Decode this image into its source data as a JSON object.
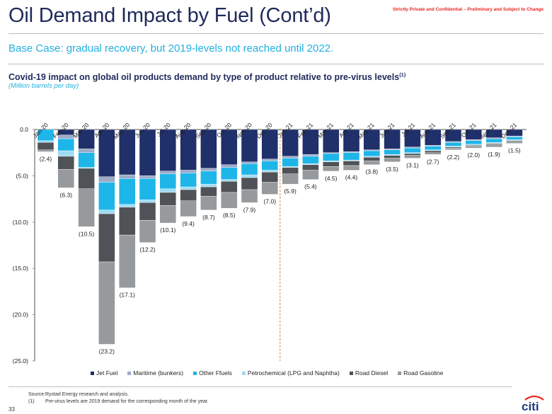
{
  "header": {
    "title": "Oil Demand Impact by Fuel (Cont’d)",
    "confidential": "Strictly Private and Confidential – Preliminary and Subject to Change",
    "subtitle": "Base Case: gradual recovery, but 2019-levels not reached until 2022."
  },
  "chart_title": {
    "text": "Covid-19 impact on global oil products demand by type of product relative to pre-virus levels",
    "sup": "(1)",
    "unit": "(Million barrels per day)"
  },
  "colors": {
    "jet_fuel": "#20306a",
    "maritime": "#9daac8",
    "other_fuels": "#1eb6e8",
    "petrochemical": "#9fdcf2",
    "road_diesel": "#4f5257",
    "road_gasoline": "#979a9d",
    "divider": "#e8955a",
    "title": "#1f2a5a",
    "accent": "#22b0e0",
    "confidential": "#e8231c"
  },
  "chart_data": {
    "type": "bar",
    "stacked": true,
    "title": "Covid-19 impact on global oil products demand by type of product relative to pre-virus levels",
    "xlabel": "",
    "ylabel": "Million barrels per day",
    "ylim": [
      -25,
      0
    ],
    "yticks": [
      0,
      -5,
      -10,
      -15,
      -20,
      -25
    ],
    "ytick_labels": [
      "0.0",
      "(5.0)",
      "(10.0)",
      "(15.0)",
      "(20.0)",
      "(25.0)"
    ],
    "legend_position": "bottom",
    "grid": false,
    "forecast_divider_after": "Dec-20",
    "categories": [
      "Jan-20",
      "Feb-20",
      "Mar-20",
      "Apr-20",
      "May-20",
      "Jun-20",
      "Jul-20",
      "Aug-20",
      "Sep-20",
      "Oct-20",
      "Nov-20",
      "Dec-20",
      "Jan-21",
      "Feb-21",
      "Mar-21",
      "Apr-21",
      "May-21",
      "Jun-21",
      "Jul-21",
      "Aug-21",
      "Sep-21",
      "Oct-21",
      "Nov-21",
      "Dec-21"
    ],
    "series": [
      {
        "name": "Jet Fuel",
        "key": "jet_fuel",
        "values": [
          0.0,
          -0.6,
          -2.1,
          -5.1,
          -4.9,
          -5.0,
          -4.5,
          -4.4,
          -4.2,
          -3.8,
          -3.5,
          -3.2,
          -2.9,
          -2.7,
          -2.5,
          -2.4,
          -2.2,
          -2.1,
          -1.9,
          -1.7,
          -1.3,
          -1.1,
          -0.9,
          -0.7
        ]
      },
      {
        "name": "Maritime (bunkers)",
        "key": "maritime",
        "values": [
          0.0,
          -0.4,
          -0.4,
          -0.6,
          -0.4,
          -0.3,
          -0.3,
          -0.3,
          -0.3,
          -0.3,
          -0.2,
          -0.2,
          -0.2,
          -0.2,
          -0.1,
          -0.1,
          -0.1,
          -0.1,
          -0.1,
          -0.1,
          -0.1,
          -0.1,
          -0.1,
          -0.1
        ]
      },
      {
        "name": "Other Ffuels",
        "key": "other_fuels",
        "values": [
          -1.2,
          -1.3,
          -1.6,
          -3.0,
          -2.8,
          -2.3,
          -1.6,
          -1.5,
          -1.4,
          -1.3,
          -1.2,
          -1.0,
          -0.9,
          -0.8,
          -0.8,
          -0.8,
          -0.6,
          -0.5,
          -0.5,
          -0.4,
          -0.4,
          -0.4,
          -0.4,
          -0.3
        ]
      },
      {
        "name": "Petrochemical (LPG and Naphtha)",
        "key": "petrochemical",
        "values": [
          -0.2,
          -0.6,
          -0.1,
          -0.4,
          -0.3,
          -0.3,
          -0.4,
          -0.3,
          -0.3,
          -0.2,
          -0.3,
          -0.2,
          -0.1,
          -0.1,
          -0.1,
          -0.1,
          -0.1,
          -0.1,
          -0.1,
          -0.1,
          -0.1,
          -0.1,
          -0.1,
          -0.1
        ]
      },
      {
        "name": "Road Diesel",
        "key": "road_diesel",
        "values": [
          -0.8,
          -1.4,
          -2.2,
          -5.2,
          -3.0,
          -1.9,
          -1.4,
          -1.2,
          -1.0,
          -1.2,
          -1.3,
          -1.1,
          -0.7,
          -0.6,
          -0.5,
          -0.5,
          -0.4,
          -0.3,
          -0.2,
          -0.2,
          -0.1,
          -0.1,
          -0.1,
          -0.1
        ]
      },
      {
        "name": "Road Gasoline",
        "key": "road_gasoline",
        "values": [
          -0.2,
          -2.0,
          -4.1,
          -8.9,
          -5.7,
          -2.4,
          -1.9,
          -1.7,
          -1.5,
          -1.7,
          -1.4,
          -1.3,
          -1.1,
          -1.0,
          -0.5,
          -0.5,
          -0.4,
          -0.4,
          -0.3,
          -0.2,
          -0.2,
          -0.2,
          -0.3,
          -0.2
        ]
      }
    ],
    "totals": [
      -2.4,
      -6.3,
      -10.5,
      -23.2,
      -17.1,
      -12.2,
      -10.1,
      -9.4,
      -8.7,
      -8.5,
      -7.9,
      -7.0,
      -5.9,
      -5.4,
      -4.5,
      -4.4,
      -3.8,
      -3.5,
      -3.1,
      -2.7,
      -2.2,
      -2.0,
      -1.9,
      -1.5
    ],
    "total_labels": [
      "(2.4)",
      "(6.3)",
      "(10.5)",
      "(23.2)",
      "(17.1)",
      "(12.2)",
      "(10.1)",
      "(9.4)",
      "(8.7)",
      "(8.5)",
      "(7.9)",
      "(7.0)",
      "(5.9)",
      "(5.4)",
      "(4.5)",
      "(4.4)",
      "(3.8)",
      "(3.5)",
      "(3.1)",
      "(2.7)",
      "(2.2)",
      "(2.0)",
      "(1.9)",
      "(1.5)"
    ]
  },
  "legend": [
    {
      "label": "Jet Fuel",
      "key": "jet_fuel"
    },
    {
      "label": "Maritime (bunkers)",
      "key": "maritime"
    },
    {
      "label": "Other Ffuels",
      "key": "other_fuels"
    },
    {
      "label": "Petrochemical (LPG and Naphtha)",
      "key": "petrochemical"
    },
    {
      "label": "Road Diesel",
      "key": "road_diesel"
    },
    {
      "label": "Road Gasoline",
      "key": "road_gasoline"
    }
  ],
  "footer": {
    "source_label": "Source:",
    "source_text": "Rystad Energy research and analysis.",
    "note_label": "(1)",
    "note_text": "Pre-virus levels are 2019 demand for the corresponding month of the year.",
    "page_number": "33",
    "logo_text": "citi"
  }
}
